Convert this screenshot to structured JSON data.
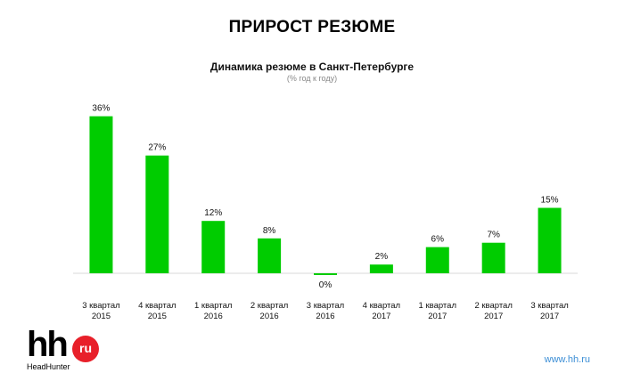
{
  "header": {
    "title": "ПРИРОСТ РЕЗЮМЕ"
  },
  "footer": {
    "logo_text": "hh",
    "logo_badge": "ru",
    "logo_sub": "HeadHunter",
    "url": "www.hh.ru"
  },
  "colors": {
    "bar": "#00cc00",
    "axis": "#d9d9d9",
    "logo_red": "#e8202a",
    "url": "#3d8fd6"
  },
  "chart_data": {
    "type": "bar",
    "title": "Динамика резюме в Санкт-Петербурге",
    "subtitle": "(% год к году)",
    "xlabel": "",
    "ylabel": "",
    "grid": false,
    "legend": "none",
    "ylim": [
      -2,
      38
    ],
    "categories": [
      [
        "3 квартал",
        "2015"
      ],
      [
        "4 квартал",
        "2015"
      ],
      [
        "1 квартал",
        "2016"
      ],
      [
        "2 квартал",
        "2016"
      ],
      [
        "3 квартал",
        "2016"
      ],
      [
        "4 квартал",
        "2017"
      ],
      [
        "1 квартал",
        "2017"
      ],
      [
        "2 квартал",
        "2017"
      ],
      [
        "3 квартал",
        "2017"
      ]
    ],
    "values": [
      36,
      27,
      12,
      8,
      0,
      2,
      6,
      7,
      15
    ],
    "value_labels": [
      "36%",
      "27%",
      "12%",
      "8%",
      "0%",
      "2%",
      "6%",
      "7%",
      "15%"
    ]
  }
}
